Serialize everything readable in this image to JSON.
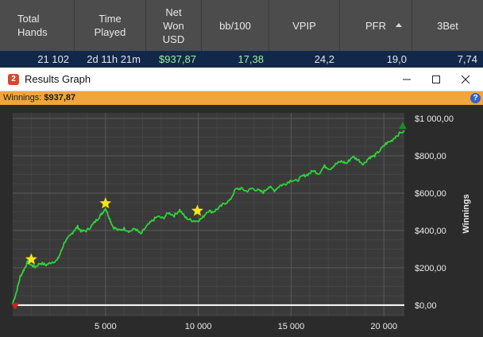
{
  "stats": {
    "headers": [
      {
        "label_lines": [
          "Total",
          "Hands"
        ]
      },
      {
        "label_lines": [
          "Time",
          "Played"
        ]
      },
      {
        "label_lines": [
          "Net",
          "Won",
          "USD"
        ]
      },
      {
        "label_lines": [
          "bb/100"
        ]
      },
      {
        "label_lines": [
          "VPIP"
        ]
      },
      {
        "label_lines": [
          "PFR"
        ]
      },
      {
        "label_lines": [
          "3Bet"
        ]
      }
    ],
    "sorted_column": "PFR",
    "row": {
      "total_hands": "21 102",
      "time_played": "2d 11h 21m",
      "net_won_usd": "$937,87",
      "bb_per_100": "17,38",
      "vpip": "24,2",
      "pfr": "19,0",
      "three_bet": "7,74"
    }
  },
  "window": {
    "icon_glyph": "2",
    "title": "Results Graph"
  },
  "winnings_bar": {
    "label": "Winnings:",
    "value": "$937,87",
    "help_glyph": "?"
  },
  "colors": {
    "line": "#2fd23a",
    "star": "#f5e61c",
    "zero_line": "#ffffff",
    "end_marker": "#1f8a2a",
    "start_marker": "#d02020"
  },
  "chart_data": {
    "type": "line",
    "x_ticks": [
      5000,
      10000,
      15000,
      20000
    ],
    "x_tick_labels": [
      "5 000",
      "10 000",
      "15 000",
      "20 000"
    ],
    "y_ticks": [
      0,
      200,
      400,
      600,
      800,
      1000
    ],
    "y_tick_labels": [
      "$0,00",
      "$200,00",
      "$400,00",
      "$600,00",
      "$800,00",
      "$1 000,00"
    ],
    "ylabel": "Winnings",
    "xlim": [
      0,
      21102
    ],
    "ylim": [
      -60,
      1030
    ],
    "grid": true,
    "series": [
      {
        "x": [
          0,
          200,
          400,
          600,
          800,
          1000,
          1200,
          1500,
          1800,
          2100,
          2400,
          2600,
          2800,
          3100,
          3300,
          3500,
          3700,
          4000,
          4300,
          4600,
          4800,
          5000,
          5200,
          5400,
          5700,
          6000,
          6300,
          6600,
          6900,
          7200,
          7500,
          7800,
          8100,
          8400,
          8700,
          9000,
          9300,
          9600,
          9900,
          10200,
          10500,
          10800,
          11100,
          11400,
          11700,
          12000,
          12300,
          12600,
          12900,
          13200,
          13500,
          13800,
          14100,
          14400,
          14700,
          15000,
          15300,
          15600,
          15900,
          16200,
          16500,
          16800,
          17100,
          17400,
          17700,
          18000,
          18300,
          18600,
          18900,
          19200,
          19500,
          19800,
          20100,
          20400,
          20700,
          21102
        ],
        "y": [
          10,
          70,
          150,
          190,
          230,
          215,
          205,
          225,
          215,
          230,
          240,
          285,
          340,
          370,
          400,
          420,
          395,
          400,
          430,
          465,
          490,
          520,
          470,
          420,
          400,
          410,
          395,
          410,
          380,
          420,
          450,
          475,
          465,
          495,
          480,
          510,
          470,
          455,
          450,
          465,
          505,
          500,
          520,
          545,
          560,
          620,
          625,
          610,
          625,
          615,
          605,
          635,
          615,
          640,
          650,
          670,
          665,
          690,
          700,
          720,
          705,
          745,
          730,
          755,
          770,
          760,
          795,
          780,
          755,
          790,
          800,
          830,
          865,
          880,
          910,
          935
        ]
      }
    ],
    "star_markers": [
      {
        "x": 1000,
        "y": 245
      },
      {
        "x": 5000,
        "y": 545
      },
      {
        "x": 9950,
        "y": 505
      }
    ]
  }
}
